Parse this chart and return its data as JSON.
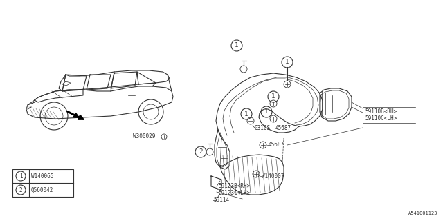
{
  "bg_color": "#ffffff",
  "line_color": "#333333",
  "diagram_id": "A541001123",
  "legend_items": [
    {
      "num": "1",
      "code": "W140065"
    },
    {
      "num": "2",
      "code": "Q560042"
    }
  ]
}
